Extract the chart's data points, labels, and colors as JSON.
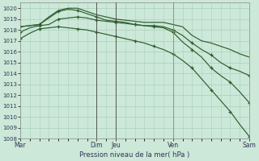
{
  "title": "Pression niveau de la mer( hPa )",
  "background_color": "#cce8d8",
  "grid_color": "#aacfbf",
  "line_color": "#2d5e2d",
  "ylim": [
    1008,
    1020.5
  ],
  "yticks": [
    1008,
    1009,
    1010,
    1011,
    1012,
    1013,
    1014,
    1015,
    1016,
    1017,
    1018,
    1019,
    1020
  ],
  "xtick_labels": [
    "Mar",
    "Dim",
    "Jeu",
    "Ven",
    "Sam"
  ],
  "xtick_positions": [
    0,
    8,
    10,
    16,
    24
  ],
  "series": [
    {
      "x": [
        0,
        1,
        2,
        3,
        4,
        5,
        6,
        7,
        8,
        9,
        10,
        11,
        12,
        13,
        14,
        15,
        16,
        17,
        18,
        19,
        20,
        21,
        22,
        23,
        24
      ],
      "y": [
        1017.2,
        1017.7,
        1018.1,
        1018.2,
        1018.3,
        1018.2,
        1018.1,
        1018.0,
        1017.8,
        1017.6,
        1017.4,
        1017.2,
        1017.0,
        1016.8,
        1016.5,
        1016.2,
        1015.8,
        1015.2,
        1014.5,
        1013.5,
        1012.5,
        1011.5,
        1010.5,
        1009.3,
        1008.2
      ],
      "markers": true,
      "marker_x": [
        0,
        2,
        4,
        6,
        8,
        10,
        12,
        14,
        16,
        18,
        20,
        22,
        24
      ],
      "marker_y": [
        1017.2,
        1018.1,
        1018.3,
        1018.1,
        1017.8,
        1017.4,
        1017.0,
        1016.5,
        1015.8,
        1014.5,
        1012.5,
        1010.5,
        1008.2
      ]
    },
    {
      "x": [
        0,
        1,
        2,
        3,
        4,
        5,
        6,
        7,
        8,
        9,
        10,
        11,
        12,
        13,
        14,
        15,
        16,
        17,
        18,
        19,
        20,
        21,
        22,
        23,
        24
      ],
      "y": [
        1017.8,
        1018.2,
        1018.4,
        1018.5,
        1019.0,
        1019.1,
        1019.2,
        1019.1,
        1018.9,
        1018.8,
        1018.7,
        1018.6,
        1018.5,
        1018.4,
        1018.3,
        1018.2,
        1017.8,
        1016.9,
        1016.2,
        1015.5,
        1014.5,
        1013.8,
        1013.2,
        1012.3,
        1011.3
      ],
      "markers": true,
      "marker_x": [
        0,
        2,
        4,
        6,
        8,
        10,
        12,
        14,
        16,
        18,
        20,
        22,
        24
      ],
      "marker_y": [
        1017.8,
        1018.4,
        1019.0,
        1019.2,
        1018.9,
        1018.7,
        1018.5,
        1018.3,
        1017.8,
        1016.2,
        1014.5,
        1013.2,
        1011.3
      ]
    },
    {
      "x": [
        0,
        1,
        2,
        3,
        4,
        5,
        6,
        7,
        8,
        9,
        10,
        11,
        12,
        13,
        14,
        15,
        16,
        17,
        18,
        19,
        20,
        21,
        22,
        23,
        24
      ],
      "y": [
        1018.3,
        1018.4,
        1018.5,
        1019.1,
        1019.7,
        1019.9,
        1019.8,
        1019.5,
        1019.2,
        1018.9,
        1018.8,
        1018.7,
        1018.5,
        1018.4,
        1018.4,
        1018.3,
        1018.0,
        1017.5,
        1016.8,
        1016.2,
        1015.7,
        1015.0,
        1014.5,
        1014.2,
        1013.8
      ],
      "markers": true,
      "marker_x": [
        0,
        2,
        4,
        6,
        8,
        10,
        12,
        14,
        16,
        18,
        20,
        22,
        24
      ],
      "marker_y": [
        1018.3,
        1018.5,
        1019.7,
        1019.8,
        1019.2,
        1018.8,
        1018.5,
        1018.4,
        1018.0,
        1016.8,
        1015.7,
        1014.5,
        1013.8
      ]
    },
    {
      "x": [
        0,
        1,
        2,
        3,
        4,
        5,
        6,
        7,
        8,
        9,
        10,
        11,
        12,
        13,
        14,
        15,
        16,
        17,
        18,
        19,
        20,
        21,
        22,
        23,
        24
      ],
      "y": [
        1018.3,
        1018.4,
        1018.5,
        1019.2,
        1019.8,
        1020.0,
        1020.0,
        1019.7,
        1019.4,
        1019.2,
        1019.0,
        1018.9,
        1018.8,
        1018.7,
        1018.7,
        1018.7,
        1018.5,
        1018.3,
        1017.5,
        1017.0,
        1016.8,
        1016.5,
        1016.2,
        1015.8,
        1015.5
      ],
      "markers": false
    }
  ],
  "vlines": [
    {
      "x": 8,
      "color": "#444444"
    },
    {
      "x": 10,
      "color": "#444444"
    },
    {
      "x": 16,
      "color": "#888888"
    },
    {
      "x": 24,
      "color": "#888888"
    }
  ]
}
